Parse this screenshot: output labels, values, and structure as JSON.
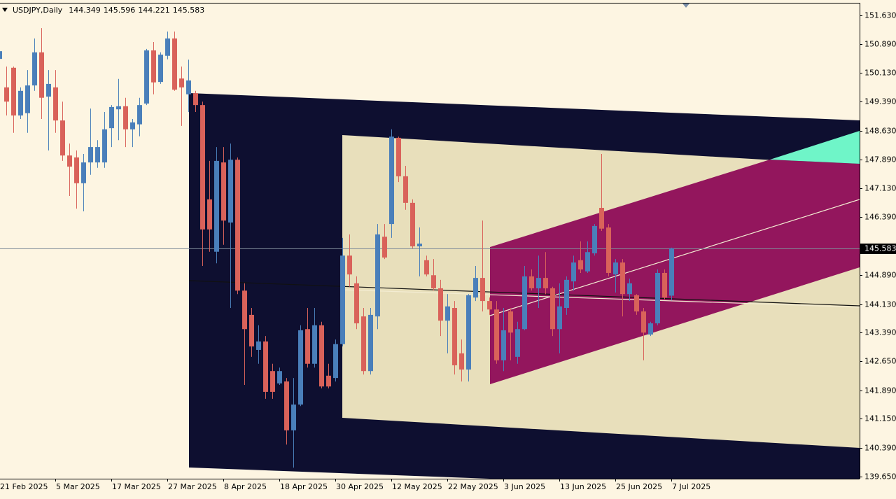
{
  "chart_data": {
    "type": "candlestick",
    "symbol": "USDJPY,Daily",
    "categories": [
      "21 Feb 2025",
      null,
      null,
      null,
      null,
      null,
      null,
      null,
      "5 Mar 2025",
      null,
      null,
      null,
      null,
      null,
      null,
      null,
      "17 Mar 2025",
      null,
      null,
      null,
      null,
      null,
      null,
      null,
      "27 Mar 2025",
      null,
      null,
      null,
      null,
      null,
      null,
      null,
      "8 Apr 2025",
      null,
      null,
      null,
      null,
      null,
      null,
      null,
      "18 Apr 2025",
      null,
      null,
      null,
      null,
      null,
      null,
      null,
      "30 Apr 2025",
      null,
      null,
      null,
      null,
      null,
      null,
      null,
      "12 May 2025",
      null,
      null,
      null,
      null,
      null,
      null,
      null,
      "22 May 2025",
      null,
      null,
      null,
      null,
      null,
      null,
      null,
      "3 Jun 2025",
      null,
      null,
      null,
      null,
      null,
      null,
      null,
      "13 Jun 2025",
      null,
      null,
      null,
      null,
      null,
      null,
      null,
      "25 Jun 2025",
      null,
      null,
      null,
      null,
      null,
      null,
      null,
      "7 Jul 2025"
    ],
    "open": [
      150.5,
      149.76,
      150.27,
      149.03,
      149.09,
      149.81,
      150.67,
      149.52,
      149.76,
      148.9,
      147.99,
      147.94,
      147.27,
      147.81,
      147.81,
      147.81,
      148.7,
      149.19,
      149.27,
      148.67,
      148.8,
      149.34,
      150.72,
      149.9,
      150.58,
      151.03,
      149.99,
      149.58,
      149.61,
      149.3,
      146.85,
      145.49,
      147.81,
      146.25,
      147.88,
      144.48,
      143.85,
      142.94,
      143.16,
      142.39,
      142.07,
      142.12,
      140.85,
      141.52,
      143.48,
      142.58,
      143.58,
      142.27,
      142.21,
      143.09,
      145.39,
      144.67,
      143.81,
      142.39,
      143.81,
      145.88,
      146.21,
      148.45,
      147.45,
      146.76,
      145.63,
      145.27,
      144.88,
      144.54,
      143.7,
      144.03,
      142.85,
      142.43,
      144.3,
      144.81,
      144.21,
      143.99,
      142.67,
      143.94,
      142.76,
      143.48,
      144.85,
      144.54,
      144.81,
      144.54,
      143.48,
      144.03,
      144.72,
      145.27,
      144.98,
      145.45,
      146.63,
      146.12,
      144.9,
      145.21,
      144.39,
      144.36,
      143.94,
      143.34,
      143.63,
      144.94,
      144.349
    ],
    "high": [
      150.9,
      150.3,
      150.3,
      149.76,
      150.21,
      151.03,
      151.3,
      150.21,
      150.21,
      149.39,
      148.3,
      148.12,
      148.03,
      149.21,
      148.39,
      149.12,
      149.3,
      149.98,
      149.49,
      148.94,
      149.49,
      150.76,
      150.94,
      150.67,
      151.21,
      151.21,
      150.3,
      150.48,
      149.67,
      149.39,
      147.85,
      148.21,
      148.21,
      148.3,
      147.94,
      144.67,
      144.03,
      143.58,
      143.3,
      142.58,
      142.48,
      142.21,
      142.21,
      143.58,
      144.03,
      144.03,
      143.67,
      142.58,
      143.21,
      145.85,
      145.94,
      144.85,
      144.03,
      144.03,
      146.21,
      146.21,
      148.67,
      148.48,
      147.72,
      146.85,
      146.12,
      145.39,
      145.3,
      144.76,
      144.39,
      144.21,
      143.21,
      144.39,
      145.12,
      146.3,
      144.3,
      144.21,
      144.03,
      144.03,
      143.67,
      145.12,
      145.03,
      145.39,
      145.48,
      144.58,
      144.67,
      144.85,
      145.39,
      145.76,
      145.76,
      146.21,
      148.03,
      146.21,
      145.3,
      145.3,
      144.79,
      144.39,
      144.03,
      143.67,
      145.03,
      145.03,
      145.596
    ],
    "low": [
      149.9,
      149.03,
      148.58,
      148.94,
      148.58,
      149.67,
      148.94,
      148.12,
      148.58,
      147.85,
      146.94,
      146.61,
      146.54,
      147.49,
      147.67,
      147.67,
      148.21,
      148.39,
      148.21,
      148.21,
      148.49,
      149.3,
      149.58,
      149.85,
      150.49,
      149.67,
      148.76,
      149.12,
      149.12,
      145.12,
      145.49,
      145.19,
      145.67,
      144.03,
      144.39,
      142.03,
      142.76,
      142.58,
      141.67,
      141.67,
      142.03,
      140.48,
      139.88,
      141.48,
      142.48,
      142.48,
      141.94,
      141.94,
      142.12,
      143.03,
      144.58,
      143.48,
      142.3,
      142.3,
      143.48,
      145.3,
      145.85,
      147.3,
      146.58,
      145.58,
      144.85,
      144.85,
      144.48,
      143.3,
      142.85,
      142.3,
      142.12,
      142.12,
      144.21,
      143.94,
      143.85,
      142.58,
      142.39,
      142.67,
      142.58,
      143.45,
      144.48,
      144.03,
      144.39,
      143.3,
      142.85,
      143.85,
      144.48,
      144.94,
      144.94,
      145.39,
      146.03,
      144.85,
      144.43,
      143.81,
      144.21,
      143.85,
      142.67,
      143.3,
      143.58,
      144.25,
      144.221
    ],
    "close": [
      150.7,
      149.39,
      149.03,
      149.67,
      149.81,
      150.67,
      149.49,
      149.85,
      148.9,
      147.99,
      147.7,
      147.27,
      147.81,
      148.21,
      148.21,
      148.67,
      149.25,
      149.27,
      148.67,
      148.85,
      149.3,
      150.72,
      149.89,
      150.61,
      151.03,
      149.7,
      149.76,
      149.94,
      149.3,
      146.07,
      146.07,
      147.85,
      146.3,
      147.88,
      144.48,
      143.48,
      143.03,
      143.16,
      141.85,
      141.85,
      142.39,
      140.85,
      141.52,
      143.45,
      142.58,
      143.58,
      141.99,
      141.99,
      143.09,
      145.39,
      144.9,
      143.63,
      142.39,
      143.85,
      145.94,
      145.34,
      148.48,
      147.45,
      146.76,
      145.63,
      145.7,
      144.9,
      144.54,
      143.7,
      144.07,
      142.54,
      142.43,
      144.36,
      144.81,
      144.21,
      143.99,
      142.67,
      143.45,
      143.39,
      143.48,
      144.85,
      144.54,
      144.81,
      144.54,
      143.48,
      144.07,
      144.76,
      145.21,
      145.03,
      145.48,
      146.16,
      146.09,
      144.94,
      145.21,
      144.39,
      144.67,
      143.94,
      143.39,
      143.63,
      144.94,
      144.3,
      145.583
    ],
    "up_color": "#4a7fba",
    "down_color": "#d9625a",
    "ylim": [
      139.594,
      151.957
    ],
    "yticks": [
      {
        "value": 151.63,
        "label": "151.630"
      },
      {
        "value": 150.89,
        "label": "150.890"
      },
      {
        "value": 150.13,
        "label": "150.130"
      },
      {
        "value": 149.39,
        "label": "149.390"
      },
      {
        "value": 148.63,
        "label": "148.630"
      },
      {
        "value": 147.89,
        "label": "147.890"
      },
      {
        "value": 147.13,
        "label": "147.130"
      },
      {
        "value": 146.39,
        "label": "146.390"
      },
      {
        "value": 144.89,
        "label": "144.890"
      },
      {
        "value": 144.13,
        "label": "144.130"
      },
      {
        "value": 143.39,
        "label": "143.390"
      },
      {
        "value": 142.65,
        "label": "142.650"
      },
      {
        "value": 141.89,
        "label": "141.890"
      },
      {
        "value": 141.15,
        "label": "141.150"
      },
      {
        "value": 140.39,
        "label": "140.390"
      },
      {
        "value": 139.65,
        "label": "139.650"
      }
    ],
    "current_price_line": true
  }
}
